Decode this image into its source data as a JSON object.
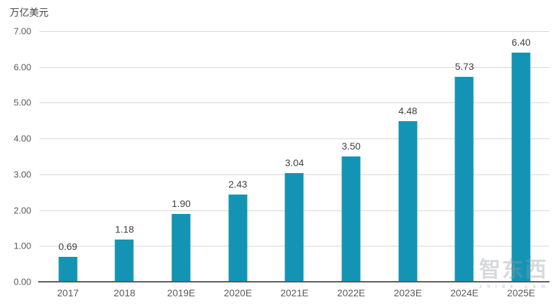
{
  "chart_data": {
    "type": "bar",
    "title": "",
    "unit_label": "万亿美元",
    "categories": [
      "2017",
      "2018",
      "2019E",
      "2020E",
      "2021E",
      "2022E",
      "2023E",
      "2024E",
      "2025E"
    ],
    "values": [
      0.69,
      1.18,
      1.9,
      2.43,
      3.04,
      3.5,
      4.48,
      5.73,
      6.4
    ],
    "value_labels": [
      "0.69",
      "1.18",
      "1.90",
      "2.43",
      "3.04",
      "3.50",
      "4.48",
      "5.73",
      "6.40"
    ],
    "xlabel": "",
    "ylabel": "万亿美元",
    "ylim": [
      0,
      7
    ],
    "y_ticks": [
      0,
      1,
      2,
      3,
      4,
      5,
      6,
      7
    ],
    "y_tick_labels": [
      "0.00",
      "1.00",
      "2.00",
      "3.00",
      "4.00",
      "5.00",
      "6.00",
      "7.00"
    ],
    "grid": "horizontal gridlines on",
    "legend": "none",
    "bar_color": "#1494B4",
    "gridline_color": "#D6D6D6",
    "axis_line_color": "#595959",
    "tick_text_color": "#595959",
    "value_text_color": "#404040"
  },
  "watermark": {
    "text": "智东西",
    "subtext": "z h i d x . c o m"
  }
}
